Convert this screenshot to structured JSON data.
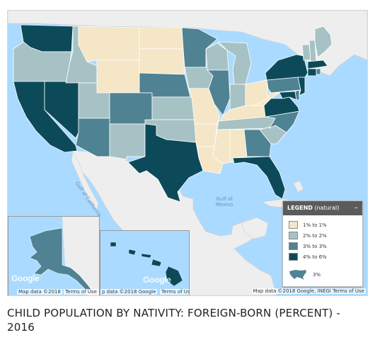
{
  "legend": {
    "title": "LEGEND",
    "subtitle": "(natural)",
    "collapse_symbol": "–",
    "items": [
      {
        "label": "1% to 1%",
        "color": "#f4e6c6"
      },
      {
        "label": "2% to 2%",
        "color": "#a7c2c4"
      },
      {
        "label": "3% to 3%",
        "color": "#4f8293"
      },
      {
        "label": "4% to 6%",
        "color": "#0c4a5a"
      }
    ],
    "usa_value": "3%"
  },
  "credits": {
    "main": "Map data ©2018 Google, INEGI   Terms of Use",
    "alaska_data": "Map data ©2018",
    "alaska_terms": "Terms of Use",
    "hawaii_data": "p data ©2018 Google",
    "hawaii_terms": "Terms of Use",
    "google": "Google"
  },
  "map_labels": {
    "gulf": "Gulf of\nMexico",
    "baja": "Gulf of California"
  },
  "caption": "CHILD POPULATION BY NATIVITY: FOREIGN-BORN (PERCENT) - 2016",
  "states": {
    "WA": 4,
    "OR": 2,
    "CA": 4,
    "NV": 4,
    "ID": 2,
    "MT": 1,
    "WY": 1,
    "UT": 2,
    "AZ": 3,
    "CO": 3,
    "NM": 2,
    "ND": 1,
    "SD": 1,
    "NE": 3,
    "KS": 2,
    "OK": 2,
    "TX": 4,
    "MN": 3,
    "IA": 2,
    "MO": 1,
    "AR": 1,
    "LA": 1,
    "WI": 2,
    "IL": 3,
    "MI": 2,
    "IN": 2,
    "OH": 1,
    "KY": 1,
    "TN": 2,
    "MS": 1,
    "AL": 1,
    "GA": 3,
    "FL": 4,
    "SC": 2,
    "NC": 3,
    "VA": 4,
    "WV": 1,
    "PA": 3,
    "NY": 4,
    "VT": 2,
    "NH": 2,
    "ME": 2,
    "MA": 4,
    "CT": 4,
    "RI": 3,
    "NJ": 4,
    "DE": 3,
    "MD": 4,
    "AK": 3,
    "HI": 4
  }
}
